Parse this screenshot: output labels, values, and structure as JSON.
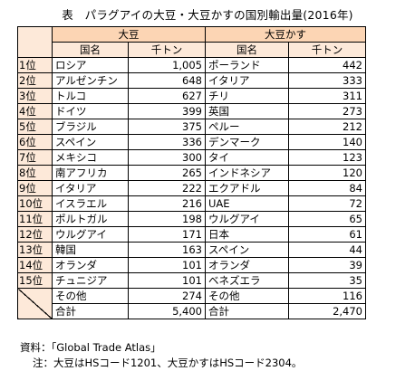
{
  "title": "表　パラグアイの大豆・大豆かすの国別輸出量(2016年)",
  "headers": {
    "soy": "大豆",
    "meal": "大豆かす",
    "country": "国名",
    "unit": "千トン"
  },
  "rows": [
    {
      "rank": "1位",
      "soy_country": "ロシア",
      "soy_value": "1,005",
      "meal_country": "ポーランド",
      "meal_value": "442"
    },
    {
      "rank": "2位",
      "soy_country": "アルゼンチン",
      "soy_value": "648",
      "meal_country": "イタリア",
      "meal_value": "333"
    },
    {
      "rank": "3位",
      "soy_country": "トルコ",
      "soy_value": "627",
      "meal_country": "チリ",
      "meal_value": "311"
    },
    {
      "rank": "4位",
      "soy_country": "ドイツ",
      "soy_value": "399",
      "meal_country": "英国",
      "meal_value": "273"
    },
    {
      "rank": "5位",
      "soy_country": "ブラジル",
      "soy_value": "375",
      "meal_country": "ペルー",
      "meal_value": "212"
    },
    {
      "rank": "6位",
      "soy_country": "スペイン",
      "soy_value": "336",
      "meal_country": "デンマーク",
      "meal_value": "140"
    },
    {
      "rank": "7位",
      "soy_country": "メキシコ",
      "soy_value": "300",
      "meal_country": "タイ",
      "meal_value": "123"
    },
    {
      "rank": "8位",
      "soy_country": "南アフリカ",
      "soy_value": "265",
      "meal_country": "インドネシア",
      "meal_value": "120"
    },
    {
      "rank": "9位",
      "soy_country": "イタリア",
      "soy_value": "222",
      "meal_country": "エクアドル",
      "meal_value": "84"
    },
    {
      "rank": "10位",
      "soy_country": "イスラエル",
      "soy_value": "216",
      "meal_country": "UAE",
      "meal_value": "72"
    },
    {
      "rank": "11位",
      "soy_country": "ポルトガル",
      "soy_value": "198",
      "meal_country": "ウルグアイ",
      "meal_value": "65"
    },
    {
      "rank": "12位",
      "soy_country": "ウルグアイ",
      "soy_value": "171",
      "meal_country": "日本",
      "meal_value": "61"
    },
    {
      "rank": "13位",
      "soy_country": "韓国",
      "soy_value": "163",
      "meal_country": "スペイン",
      "meal_value": "44"
    },
    {
      "rank": "14位",
      "soy_country": "オランダ",
      "soy_value": "101",
      "meal_country": "オランダ",
      "meal_value": "39"
    },
    {
      "rank": "15位",
      "soy_country": "チュニジア",
      "soy_value": "101",
      "meal_country": "ベネズエラ",
      "meal_value": "35"
    }
  ],
  "others": {
    "label": "その他",
    "soy_value": "274",
    "meal_value": "116"
  },
  "total": {
    "label": "合計",
    "soy_value": "5,400",
    "meal_value": "2,470"
  },
  "notes": {
    "source": "資料：「Global Trade Atlas」",
    "note": "注：大豆はHSコード1201、大豆かすはHSコード2304。"
  }
}
